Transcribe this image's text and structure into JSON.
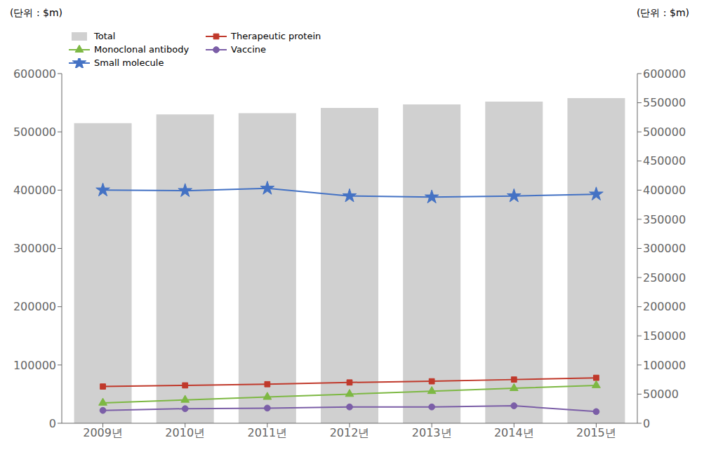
{
  "chart_data": {
    "type": "bar",
    "categories": [
      "2009년",
      "2010년",
      "2011년",
      "2012년",
      "2013년",
      "2014년",
      "2015년"
    ],
    "ylabel": "(단위 : $m)",
    "y2label": "(단위 : $m)",
    "series": [
      {
        "name": "Total",
        "type": "bar",
        "color": "#d0d0d0",
        "values": [
          515000,
          530000,
          532000,
          541000,
          547000,
          552000,
          558000
        ]
      },
      {
        "name": "Therapeutic protein",
        "type": "line",
        "color": "#c0392b",
        "marker": "square",
        "values": [
          63000,
          65000,
          67000,
          70000,
          72000,
          75000,
          78000
        ]
      },
      {
        "name": "Monoclonal antibody",
        "type": "line",
        "color": "#7db843",
        "marker": "triangle",
        "values": [
          35000,
          40000,
          45000,
          50000,
          55000,
          60000,
          65000
        ]
      },
      {
        "name": "Vaccine",
        "type": "line",
        "color": "#7b5ea7",
        "marker": "circle",
        "values": [
          22000,
          25000,
          26000,
          28000,
          28000,
          30000,
          20000
        ]
      },
      {
        "name": "Small molecule",
        "type": "line",
        "color": "#4472c4",
        "marker": "star",
        "values": [
          400000,
          399000,
          403000,
          390000,
          388000,
          390000,
          393000
        ]
      }
    ],
    "ylim": [
      0,
      600000
    ],
    "yticks": [
      0,
      100000,
      200000,
      300000,
      400000,
      500000,
      600000
    ],
    "y2lim": [
      0,
      600000
    ],
    "y2ticks": [
      0,
      50000,
      100000,
      150000,
      200000,
      250000,
      300000,
      350000,
      400000,
      450000,
      500000,
      550000,
      600000
    ],
    "grid": false,
    "legend": "upper left"
  }
}
